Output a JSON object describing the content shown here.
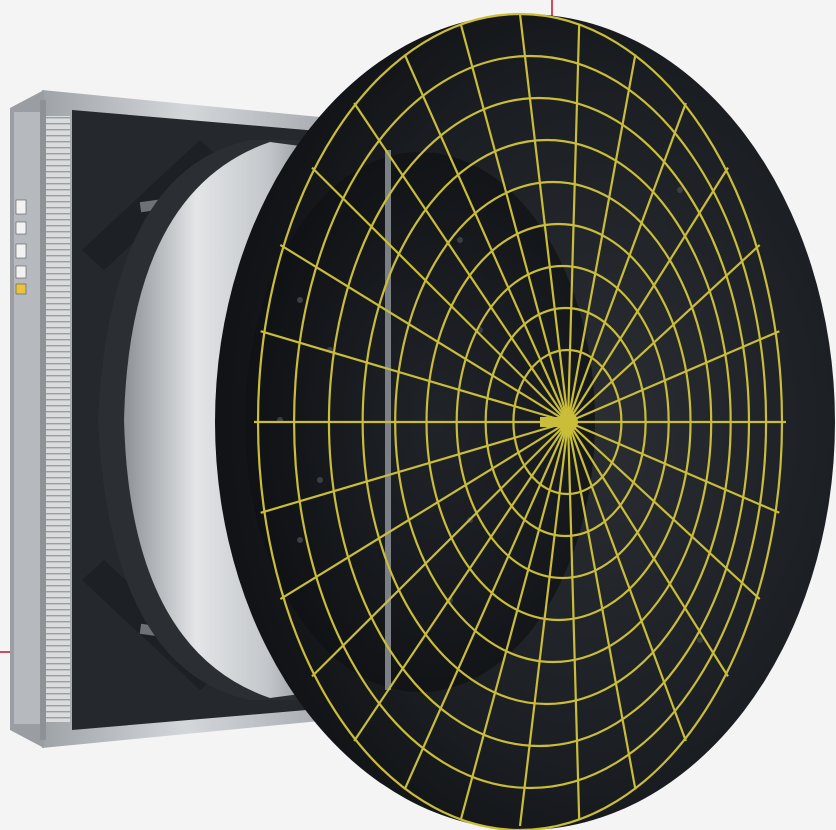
{
  "image": {
    "subject": "cone-fan",
    "background_color": "#f4f4f4",
    "accent_line_color": "#c8102e",
    "guard_color": "#c9bd3a",
    "cone_color": "#1e2125",
    "frame_color": "#b9bdc1",
    "housing_color": "#c8cbcf",
    "panel_color": "#25282c"
  }
}
